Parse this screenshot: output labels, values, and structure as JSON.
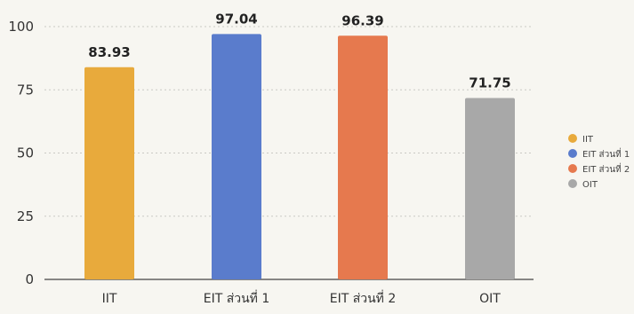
{
  "chart_data": {
    "type": "bar",
    "categories": [
      "IIT",
      "EIT ส่วนที่ 1",
      "EIT ส่วนที่ 2",
      "OIT"
    ],
    "values": [
      83.93,
      97.04,
      96.39,
      71.75
    ],
    "data_labels": [
      "83.93",
      "97.04",
      "96.39",
      "71.75"
    ],
    "colors": [
      "#e8aa3c",
      "#5a7ccc",
      "#e6794e",
      "#a8a8a8"
    ],
    "ylim": [
      0,
      100
    ],
    "yticks": [
      "0",
      "25",
      "50",
      "75",
      "100"
    ],
    "grid": true,
    "legend_position": "right",
    "legend": [
      "IIT",
      "EIT ส่วนที่ 1",
      "EIT ส่วนที่ 2",
      "OIT"
    ]
  }
}
